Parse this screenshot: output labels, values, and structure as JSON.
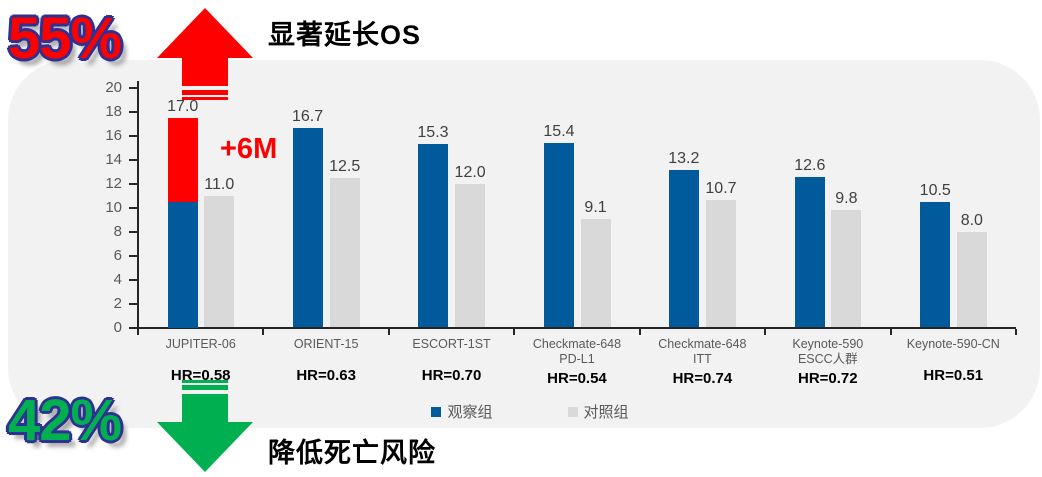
{
  "header": {
    "percent": "55%",
    "title": "显著延长OS"
  },
  "footer": {
    "percent": "42%",
    "title": "降低死亡风险"
  },
  "chart_data": {
    "type": "bar",
    "title": "",
    "categories": [
      "JUPITER-06",
      "ORIENT-15",
      "ESCORT-1ST",
      "Checkmate-648\nPD-L1",
      "Checkmate-648\nITT",
      "Keynote-590\nESCC人群",
      "Keynote-590-CN"
    ],
    "hr_labels": [
      "HR=0.58",
      "HR=0.63",
      "HR=0.70",
      "HR=0.54",
      "HR=0.74",
      "HR=0.72",
      "HR=0.51"
    ],
    "series": [
      {
        "name": "观察组",
        "color": "#005A9B",
        "values": [
          17.0,
          16.7,
          15.3,
          15.4,
          13.2,
          12.6,
          10.5
        ]
      },
      {
        "name": "对照组",
        "color": "#D9D9D9",
        "values": [
          11.0,
          12.5,
          12.0,
          9.1,
          10.7,
          9.8,
          8.0
        ]
      }
    ],
    "highlight": {
      "category_index": 0,
      "series_index": 0,
      "base_value": 10.5,
      "top_value": 17.5,
      "color": "#FF0000",
      "label": "+6M"
    },
    "ylim": [
      0,
      20
    ],
    "yticks": [
      0,
      2,
      4,
      6,
      8,
      10,
      12,
      14,
      16,
      18,
      20
    ],
    "grid": false,
    "legend_position": "bottom"
  },
  "colors": {
    "observation_blue": "#005A9B",
    "control_gray": "#D9D9D9",
    "highlight_red": "#FF0000",
    "arrow_up_red": "#FF0000",
    "arrow_down_green": "#00B050",
    "percent_up_fill": "#FF0000",
    "percent_down_fill": "#00B050",
    "percent_outline": "#2E3192",
    "panel_background": "#F2F2F2"
  }
}
